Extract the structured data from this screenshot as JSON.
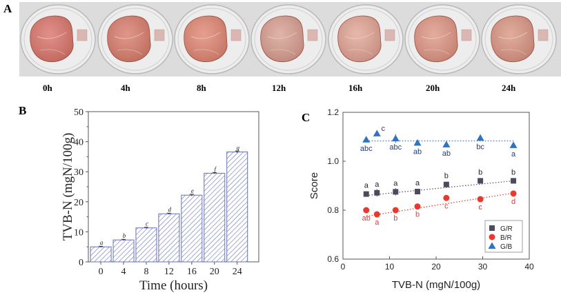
{
  "panel_a": {
    "letter": "A",
    "time_labels": [
      "0h",
      "4h",
      "8h",
      "12h",
      "16h",
      "20h",
      "24h"
    ],
    "sample_colors": [
      "#d9776e",
      "#d7806f",
      "#df8a76",
      "#d7a396",
      "#e0a99a",
      "#dd9a88",
      "#d99a88"
    ]
  },
  "chart_data": [
    {
      "panel": "B",
      "type": "bar",
      "categories": [
        "0",
        "4",
        "8",
        "12",
        "16",
        "20",
        "24"
      ],
      "values": [
        5.0,
        7.3,
        11.3,
        16.0,
        22.2,
        29.5,
        36.6
      ],
      "errors": [
        0.2,
        0.2,
        0.2,
        0.2,
        0.3,
        0.2,
        0.3
      ],
      "letters": [
        "a",
        "b",
        "c",
        "d",
        "e",
        "f",
        "g"
      ],
      "xlabel": "Time (hours)",
      "ylabel": "TVB-N (mgN/100g)",
      "ylim": [
        0,
        50
      ],
      "yticks": [
        0,
        10,
        20,
        30,
        40,
        50
      ],
      "bar_color": "#6670b6"
    },
    {
      "panel": "C",
      "type": "scatter",
      "xlabel": "TVB-N (mgN/100g)",
      "ylabel": "Score",
      "xlim": [
        0,
        40
      ],
      "ylim": [
        0.6,
        1.2
      ],
      "xticks": [
        0,
        10,
        20,
        30,
        40
      ],
      "yticks": [
        "0.6",
        "0.8",
        "1.0",
        "1.2"
      ],
      "legend_position": "bottom-right",
      "series": [
        {
          "name": "G/R",
          "marker": "square",
          "color": "#4b4b5e",
          "x": [
            5.0,
            7.3,
            11.3,
            16.0,
            22.2,
            29.5,
            36.6
          ],
          "y": [
            0.866,
            0.871,
            0.875,
            0.876,
            0.905,
            0.92,
            0.92
          ],
          "errors": [
            0.01,
            0.015,
            0.015,
            0.008,
            0.008,
            0.008,
            0.008
          ],
          "letters": [
            "a",
            "a",
            "a",
            "a",
            "b",
            "b",
            "b"
          ],
          "trend": [
            0.86,
            0.92
          ],
          "trend_color": "#4d4d60"
        },
        {
          "name": "B/R",
          "marker": "circle",
          "color": "#e8392e",
          "x": [
            5.0,
            7.3,
            11.3,
            16.0,
            22.2,
            29.5,
            36.6
          ],
          "y": [
            0.8,
            0.783,
            0.8,
            0.815,
            0.85,
            0.845,
            0.868
          ],
          "errors": [
            0.008,
            0.008,
            0.008,
            0.008,
            0.008,
            0.008,
            0.008
          ],
          "letters": [
            "ab",
            "a",
            "b",
            "b",
            "c",
            "c",
            "d"
          ],
          "trend": [
            0.775,
            0.87
          ],
          "trend_color": "#e8392e"
        },
        {
          "name": "G/B",
          "marker": "triangle",
          "color": "#2f74bd",
          "x": [
            5.0,
            7.3,
            11.3,
            16.0,
            22.2,
            29.5,
            36.6
          ],
          "y": [
            1.088,
            1.113,
            1.093,
            1.075,
            1.068,
            1.095,
            1.065
          ],
          "errors": [
            0.008,
            0.01,
            0.018,
            0.008,
            0.008,
            0.008,
            0.008
          ],
          "letters": [
            "abc",
            "c",
            "abc",
            "ab",
            "ab",
            "bc",
            "a"
          ],
          "trend": [
            1.083,
            1.083
          ],
          "trend_color": "#2f74bd"
        }
      ]
    }
  ]
}
